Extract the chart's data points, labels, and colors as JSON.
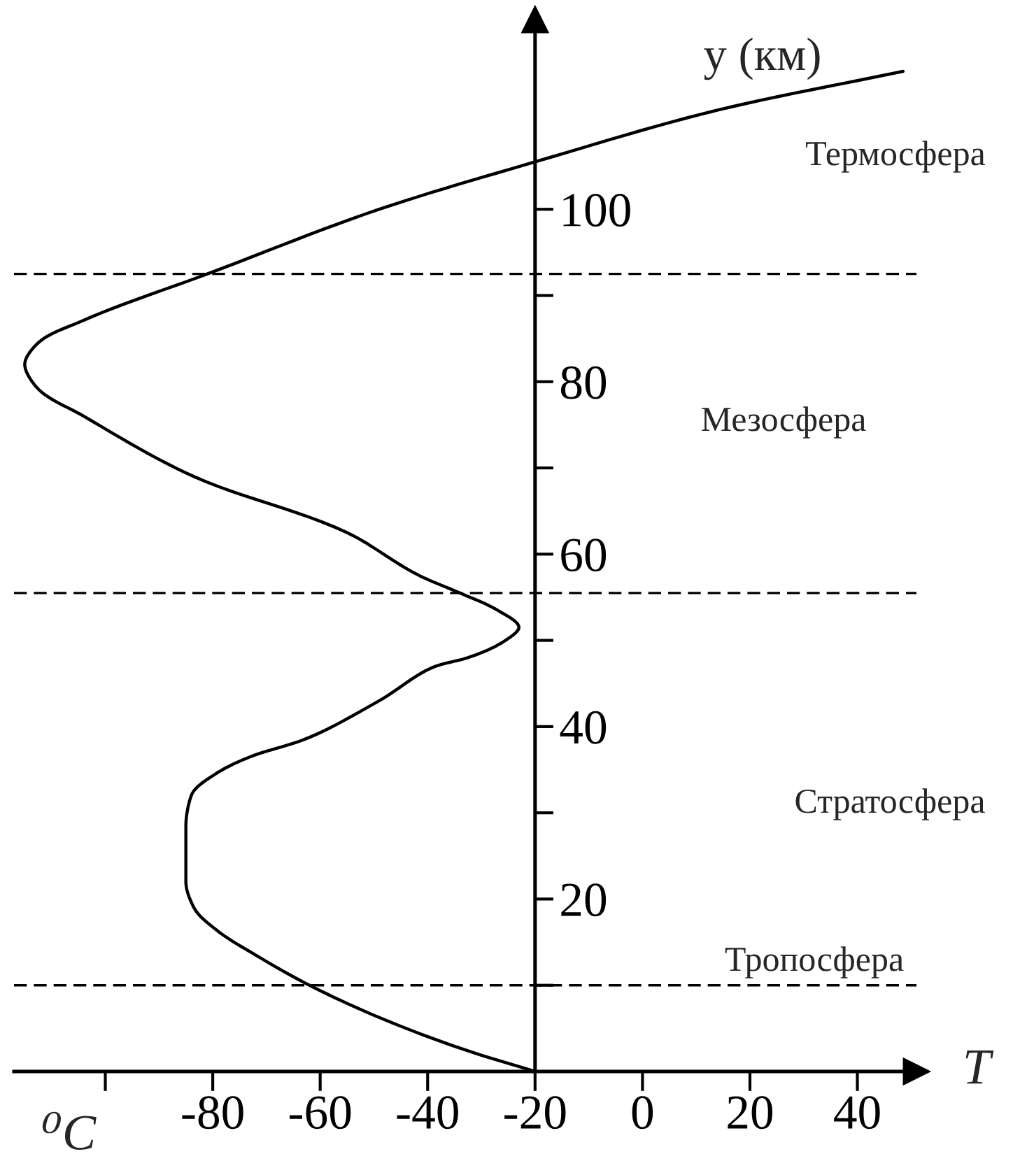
{
  "chart_data": {
    "type": "line",
    "xlabel": "T",
    "ylabel": "y (км)",
    "series": [
      {
        "color": "#000000",
        "x": [
          -20,
          -33,
          -48,
          -62,
          -72,
          -79.5,
          -83.5,
          -85,
          -85,
          -85,
          -84,
          -79.5,
          -73,
          -63,
          -49,
          -38.5,
          -32.5,
          -25.5,
          -23,
          -27,
          -34,
          -41.5,
          -55,
          -83.5,
          -104,
          -113,
          -115,
          -112.5,
          -104.5,
          -81,
          -49,
          -20,
          14,
          48.5
        ],
        "values": [
          0,
          2.5,
          6,
          10,
          13.5,
          16.5,
          19,
          22,
          25,
          28.5,
          32,
          34.5,
          36.5,
          38.5,
          43,
          47,
          48,
          50,
          51.5,
          53.5,
          55.5,
          57.5,
          62.5,
          69,
          76,
          79.5,
          82,
          84.5,
          87,
          92.5,
          100,
          105.5,
          111.5,
          116
        ]
      }
    ],
    "xlim": [
      -117,
      51
    ],
    "ylim": [
      0,
      122
    ],
    "xticks": [
      {
        "value": -100,
        "label": null
      },
      -80,
      -60,
      -40,
      -20,
      0,
      20,
      40
    ],
    "yticks": [
      {
        "value": 10,
        "label": null
      },
      20,
      40,
      60,
      80,
      100
    ],
    "ref_lines": [
      {
        "axis": "y",
        "value": 10,
        "color": "#000000",
        "line_style": "dashed"
      },
      {
        "axis": "y",
        "value": 55.5,
        "color": "#000000",
        "line_style": "dashed"
      },
      {
        "axis": "y",
        "value": 92.5,
        "color": "#000000",
        "line_style": "dashed"
      }
    ],
    "annotations": [
      "Термосфера",
      "Мезосфера",
      "Стратосфера",
      "Тропосфера",
      "⁰C"
    ],
    "line_style": "solid"
  }
}
